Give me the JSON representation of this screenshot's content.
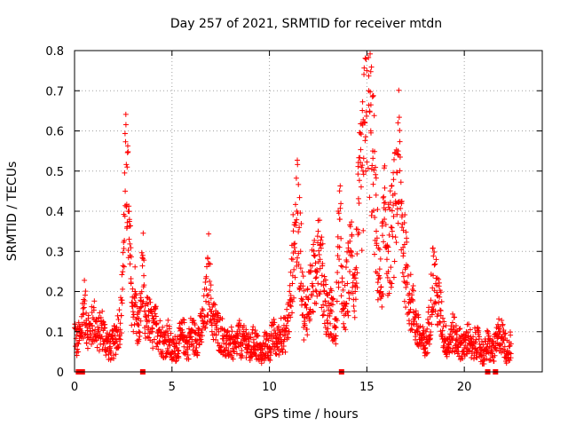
{
  "chart_data": {
    "type": "scatter",
    "title": "Day 257 of 2021, SRMTID for receiver mtdn",
    "xlabel": "GPS time / hours",
    "ylabel": "SRMTID / TECUs",
    "xlim": [
      0,
      24
    ],
    "ylim": [
      0,
      0.8
    ],
    "x_ticks": [
      0,
      5,
      10,
      15,
      20
    ],
    "x_tick_labels": [
      "0",
      "5",
      "10",
      "15",
      "20"
    ],
    "y_ticks": [
      0,
      0.1,
      0.2,
      0.3,
      0.4,
      0.5,
      0.6,
      0.7,
      0.8
    ],
    "y_tick_labels": [
      "0",
      "0.1",
      "0.2",
      "0.3",
      "0.4",
      "0.5",
      "0.6",
      "0.7",
      "0.8"
    ],
    "grid": true,
    "marker": "+",
    "color": "#ff0000",
    "zero_markers_x": [
      0.2,
      0.4,
      3.5,
      13.7,
      21.2,
      21.6
    ],
    "series": [
      {
        "name": "SRMTID",
        "x": [
          0.0,
          0.1,
          0.3,
          0.5,
          0.6,
          0.8,
          1.0,
          1.2,
          1.4,
          1.6,
          1.8,
          2.0,
          2.2,
          2.4,
          2.6,
          2.7,
          2.75,
          2.8,
          2.85,
          2.9,
          3.0,
          3.1,
          3.2,
          3.3,
          3.4,
          3.5,
          3.6,
          3.8,
          4.0,
          4.2,
          4.4,
          4.6,
          4.8,
          5.0,
          5.2,
          5.4,
          5.6,
          5.8,
          6.0,
          6.2,
          6.4,
          6.6,
          6.8,
          6.9,
          7.0,
          7.2,
          7.4,
          7.6,
          7.8,
          8.0,
          8.2,
          8.4,
          8.6,
          8.8,
          9.0,
          9.2,
          9.4,
          9.6,
          9.8,
          10.0,
          10.2,
          10.4,
          10.6,
          10.8,
          11.0,
          11.1,
          11.2,
          11.3,
          11.4,
          11.6,
          11.8,
          12.0,
          12.2,
          12.4,
          12.5,
          12.6,
          12.8,
          13.0,
          13.2,
          13.4,
          13.6,
          13.8,
          14.0,
          14.2,
          14.4,
          14.6,
          14.8,
          14.9,
          15.0,
          15.1,
          15.2,
          15.3,
          15.5,
          15.7,
          15.9,
          16.1,
          16.3,
          16.5,
          16.6,
          16.8,
          17.0,
          17.2,
          17.4,
          17.6,
          17.8,
          18.0,
          18.2,
          18.4,
          18.6,
          18.8,
          19.0,
          19.2,
          19.4,
          19.6,
          19.8,
          20.0,
          20.2,
          20.4,
          20.6,
          20.8,
          21.0,
          21.2,
          21.4,
          21.6,
          21.8,
          22.0,
          22.2,
          22.4
        ],
        "y": [
          0.11,
          0.07,
          0.09,
          0.17,
          0.12,
          0.1,
          0.13,
          0.09,
          0.11,
          0.08,
          0.06,
          0.07,
          0.1,
          0.14,
          0.45,
          0.51,
          0.4,
          0.33,
          0.29,
          0.22,
          0.15,
          0.2,
          0.12,
          0.1,
          0.16,
          0.29,
          0.11,
          0.14,
          0.1,
          0.12,
          0.09,
          0.07,
          0.09,
          0.05,
          0.06,
          0.08,
          0.09,
          0.06,
          0.1,
          0.08,
          0.09,
          0.12,
          0.19,
          0.27,
          0.15,
          0.12,
          0.1,
          0.09,
          0.06,
          0.08,
          0.05,
          0.09,
          0.07,
          0.08,
          0.05,
          0.08,
          0.06,
          0.04,
          0.07,
          0.06,
          0.09,
          0.07,
          0.1,
          0.09,
          0.14,
          0.19,
          0.28,
          0.32,
          0.4,
          0.3,
          0.12,
          0.18,
          0.22,
          0.25,
          0.35,
          0.28,
          0.2,
          0.14,
          0.15,
          0.09,
          0.38,
          0.12,
          0.22,
          0.3,
          0.2,
          0.42,
          0.5,
          0.62,
          0.75,
          0.7,
          0.6,
          0.55,
          0.32,
          0.2,
          0.38,
          0.3,
          0.35,
          0.42,
          0.55,
          0.36,
          0.26,
          0.18,
          0.15,
          0.1,
          0.08,
          0.06,
          0.12,
          0.24,
          0.19,
          0.14,
          0.08,
          0.07,
          0.1,
          0.08,
          0.07,
          0.06,
          0.09,
          0.05,
          0.08,
          0.06,
          0.04,
          0.07,
          0.05,
          0.06,
          0.1,
          0.08,
          0.05,
          0.07
        ]
      }
    ]
  }
}
